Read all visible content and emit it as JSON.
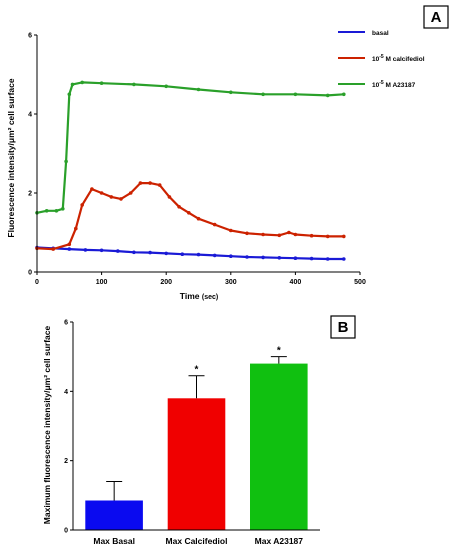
{
  "chart_data": [
    {
      "panel": "A",
      "type": "line",
      "xlabel": "Time",
      "xlabel_unit": "(sec)",
      "ylabel": "Fluorescence intensity/μm² cell surface",
      "xlim": [
        0,
        500
      ],
      "ylim": [
        0,
        6
      ],
      "xticks": [
        "0",
        "100",
        "200",
        "300",
        "400",
        "500"
      ],
      "yticks": [
        "0",
        "2",
        "4",
        "6"
      ],
      "legend_position": "top-right",
      "legend": [
        {
          "label": "basal",
          "color": "#1a1ad6"
        },
        {
          "prefix": "10",
          "sup": "-5",
          "rest": " M calcifediol",
          "color": "#cc2200"
        },
        {
          "prefix": "10",
          "sup": "-5",
          "rest": " M A23187",
          "color": "#2aa02a"
        }
      ],
      "series": [
        {
          "name": "basal",
          "color": "#1a1ad6",
          "x": [
            0,
            25,
            50,
            75,
            100,
            125,
            150,
            175,
            200,
            225,
            250,
            275,
            300,
            325,
            350,
            375,
            400,
            425,
            450,
            475
          ],
          "y": [
            0.62,
            0.6,
            0.58,
            0.56,
            0.55,
            0.53,
            0.5,
            0.49,
            0.47,
            0.45,
            0.44,
            0.42,
            0.4,
            0.38,
            0.37,
            0.36,
            0.35,
            0.34,
            0.33,
            0.33
          ]
        },
        {
          "name": "calcifediol",
          "color": "#cc2200",
          "x": [
            0,
            25,
            50,
            60,
            70,
            85,
            100,
            115,
            130,
            145,
            160,
            175,
            190,
            205,
            220,
            235,
            250,
            275,
            300,
            325,
            350,
            375,
            390,
            400,
            425,
            450,
            475
          ],
          "y": [
            0.6,
            0.58,
            0.7,
            1.1,
            1.7,
            2.1,
            2.0,
            1.9,
            1.85,
            2.0,
            2.25,
            2.25,
            2.2,
            1.9,
            1.65,
            1.5,
            1.35,
            1.2,
            1.05,
            0.98,
            0.95,
            0.93,
            1.0,
            0.95,
            0.92,
            0.9,
            0.9
          ]
        },
        {
          "name": "A23187",
          "color": "#2aa02a",
          "x": [
            0,
            15,
            30,
            40,
            45,
            50,
            55,
            70,
            100,
            150,
            200,
            250,
            300,
            350,
            400,
            450,
            475
          ],
          "y": [
            1.5,
            1.55,
            1.55,
            1.6,
            2.8,
            4.5,
            4.75,
            4.8,
            4.78,
            4.75,
            4.7,
            4.62,
            4.55,
            4.5,
            4.5,
            4.47,
            4.5
          ]
        }
      ]
    },
    {
      "panel": "B",
      "type": "bar",
      "ylabel": "Maximum fluorescence intensity/μm² cell surface",
      "ylim": [
        0,
        6
      ],
      "yticks": [
        "0",
        "2",
        "4",
        "6"
      ],
      "categories": [
        "Max Basal",
        "Max Calcifediol",
        "Max A23187"
      ],
      "values": [
        0.85,
        3.8,
        4.8
      ],
      "errors": [
        0.55,
        0.65,
        0.2
      ],
      "significance": [
        "",
        "*",
        "*"
      ],
      "colors": [
        "#0a0af0",
        "#f00000",
        "#10c010"
      ]
    }
  ]
}
